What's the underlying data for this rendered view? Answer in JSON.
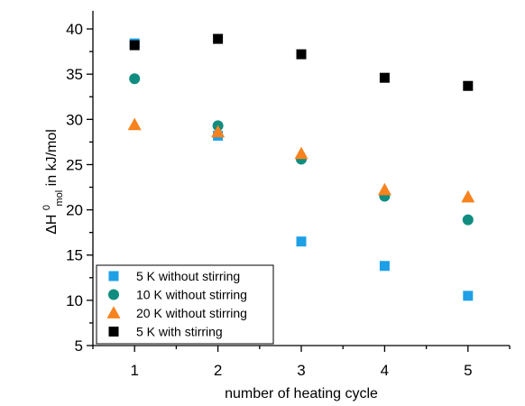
{
  "chart_data": {
    "type": "scatter",
    "title": "",
    "xlabel": "number of heating cycle",
    "ylabel": "ΔH",
    "ylabel_sup": "0",
    "ylabel_sub": "mol",
    "ylabel_unit": " in kJ/mol",
    "xlim": [
      0.5,
      5.5
    ],
    "ylim": [
      5,
      42
    ],
    "xticks": [
      1,
      2,
      3,
      4,
      5
    ],
    "yticks": [
      5,
      10,
      15,
      20,
      25,
      30,
      35,
      40
    ],
    "grid": false,
    "legend_position": "bottom-left",
    "series": [
      {
        "name": "5 K without stirring",
        "marker": "square",
        "color": "#1ea0e6",
        "x": [
          1,
          2,
          3,
          4,
          5
        ],
        "y": [
          38.4,
          28.2,
          16.5,
          13.8,
          10.5
        ]
      },
      {
        "name": "10 K without stirring",
        "marker": "circle",
        "color": "#118d80",
        "x": [
          1,
          2,
          3,
          4,
          5
        ],
        "y": [
          34.5,
          29.3,
          25.6,
          21.5,
          18.9
        ]
      },
      {
        "name": "20 K without stirring",
        "marker": "triangle",
        "color": "#f7821e",
        "x": [
          1,
          2,
          3,
          4,
          5
        ],
        "y": [
          29.4,
          28.6,
          26.2,
          22.2,
          21.4
        ]
      },
      {
        "name": "5 K with stirring",
        "marker": "square",
        "color": "#000000",
        "x": [
          1,
          2,
          3,
          4,
          5
        ],
        "y": [
          38.2,
          38.9,
          37.2,
          34.6,
          33.7
        ]
      }
    ]
  }
}
